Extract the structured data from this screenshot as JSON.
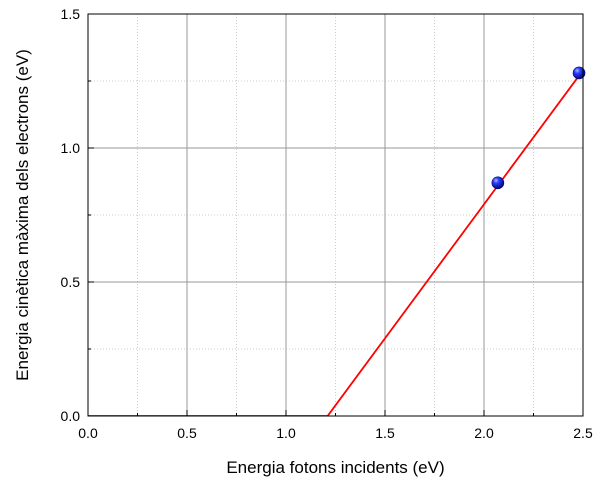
{
  "chart_data": {
    "type": "scatter",
    "title": "",
    "xlabel": "Energia fotons incidents (eV)",
    "ylabel": "Energia cinètica màxima dels electrons (eV)",
    "xlim": [
      0.0,
      2.5
    ],
    "ylim": [
      0.0,
      1.5
    ],
    "x_ticks": [
      "0.0",
      "0.5",
      "1.0",
      "1.5",
      "2.0",
      "2.5"
    ],
    "y_ticks": [
      "0.0",
      "0.5",
      "1.0",
      "1.5"
    ],
    "grid": true,
    "colors": {
      "fit_line": "#ff0000",
      "points": "#1a1aff",
      "major_grid": "#999999",
      "minor_grid": "#cccccc"
    },
    "series": [
      {
        "kind": "points",
        "points": [
          {
            "x": 2.07,
            "y": 0.87
          },
          {
            "x": 2.48,
            "y": 1.28
          }
        ]
      },
      {
        "kind": "line",
        "points": [
          {
            "x": 0.0,
            "y": 0.0
          },
          {
            "x": 1.21,
            "y": 0.0
          },
          {
            "x": 2.5,
            "y": 1.29
          }
        ]
      }
    ]
  }
}
